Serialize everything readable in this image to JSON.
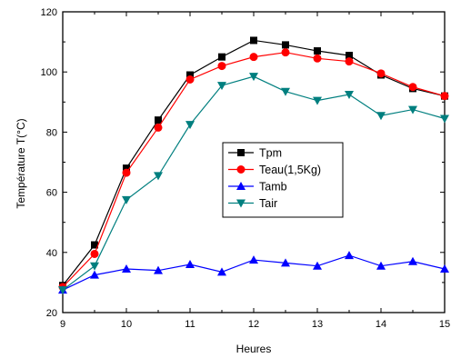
{
  "chart_data": {
    "type": "line",
    "title": "",
    "xlabel": "Heures",
    "ylabel": "Température T(°C)",
    "xlim": [
      9,
      15
    ],
    "ylim": [
      20,
      120
    ],
    "x_ticks": [
      9,
      10,
      11,
      12,
      13,
      14,
      15
    ],
    "y_ticks": [
      20,
      40,
      60,
      80,
      100,
      120
    ],
    "grid": false,
    "legend_position": "center",
    "x": [
      9,
      9.5,
      10,
      10.5,
      11,
      11.5,
      12,
      12.5,
      13,
      13.5,
      14,
      14.5,
      15
    ],
    "series": [
      {
        "name": "Tpm",
        "color": "#000000",
        "marker": "square",
        "values": [
          29,
          42.5,
          68,
          84,
          99,
          105,
          110.5,
          109,
          107,
          105.5,
          99,
          94.5,
          92
        ]
      },
      {
        "name": "Teau(1,5Kg)",
        "color": "#ff0000",
        "marker": "circle",
        "values": [
          28.5,
          39.5,
          66.5,
          81.5,
          97.5,
          102,
          105,
          106.5,
          104.5,
          103.5,
          99.5,
          95,
          92
        ]
      },
      {
        "name": "Tamb",
        "color": "#0000ff",
        "marker": "triangle-up",
        "values": [
          27.5,
          32.5,
          34.5,
          34,
          36,
          33.5,
          37.5,
          36.5,
          35.5,
          39,
          35.5,
          37,
          34.5
        ]
      },
      {
        "name": "Tair",
        "color": "#007f7f",
        "marker": "triangle-down",
        "values": [
          27.5,
          35.5,
          57.5,
          65.5,
          82.5,
          95.5,
          98.5,
          93.5,
          90.5,
          92.5,
          85.5,
          87.5,
          84.5
        ]
      }
    ]
  }
}
